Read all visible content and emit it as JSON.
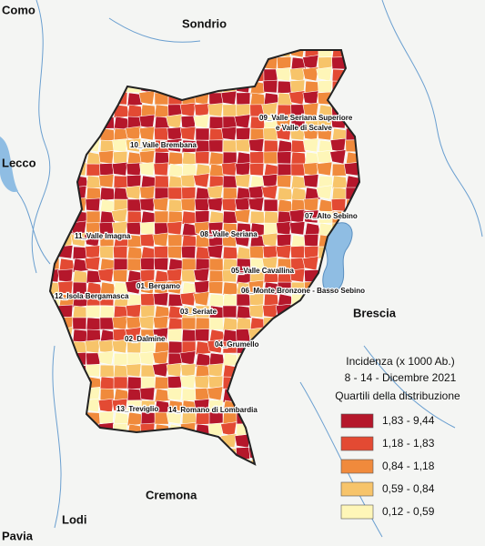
{
  "neighbors": [
    "Como",
    "Sondrio",
    "Lecco",
    "Brescia",
    "Cremona",
    "Lodi",
    "Pavia"
  ],
  "districts": [
    [
      "10_Valle Brembana"
    ],
    [
      "09_Valle Seriana Superiore",
      "e Valle di Scalve"
    ],
    [
      "07_Alto Sebino"
    ],
    [
      "11_Valle Imagna"
    ],
    [
      "08_Valle Seriana"
    ],
    [
      "05_Valle Cavallina"
    ],
    [
      "01_Bergamo"
    ],
    [
      "06_Monte Bronzone - Basso Sebino"
    ],
    [
      "12_Isola Bergamasca"
    ],
    [
      "03_Seriate"
    ],
    [
      "02_Dalmine"
    ],
    [
      "04_Grumello"
    ],
    [
      "13_Treviglio"
    ],
    [
      "14_Romano di Lombardia"
    ]
  ],
  "legend": {
    "title": "Incidenza (x 1000 Ab.)",
    "period": "8 - 14 - Dicembre 2021",
    "subtitle": "Quartili della distribuzione",
    "classes": [
      {
        "label": "1,83 - 9,44",
        "color": "#b5172b"
      },
      {
        "label": "1,18 - 1,83",
        "color": "#e34a33"
      },
      {
        "label": "0,84 - 1,18",
        "color": "#f08a3c"
      },
      {
        "label": "0,59 - 0,84",
        "color": "#f7c46a"
      },
      {
        "label": "0,12 - 0,59",
        "color": "#fef6b8"
      }
    ]
  }
}
